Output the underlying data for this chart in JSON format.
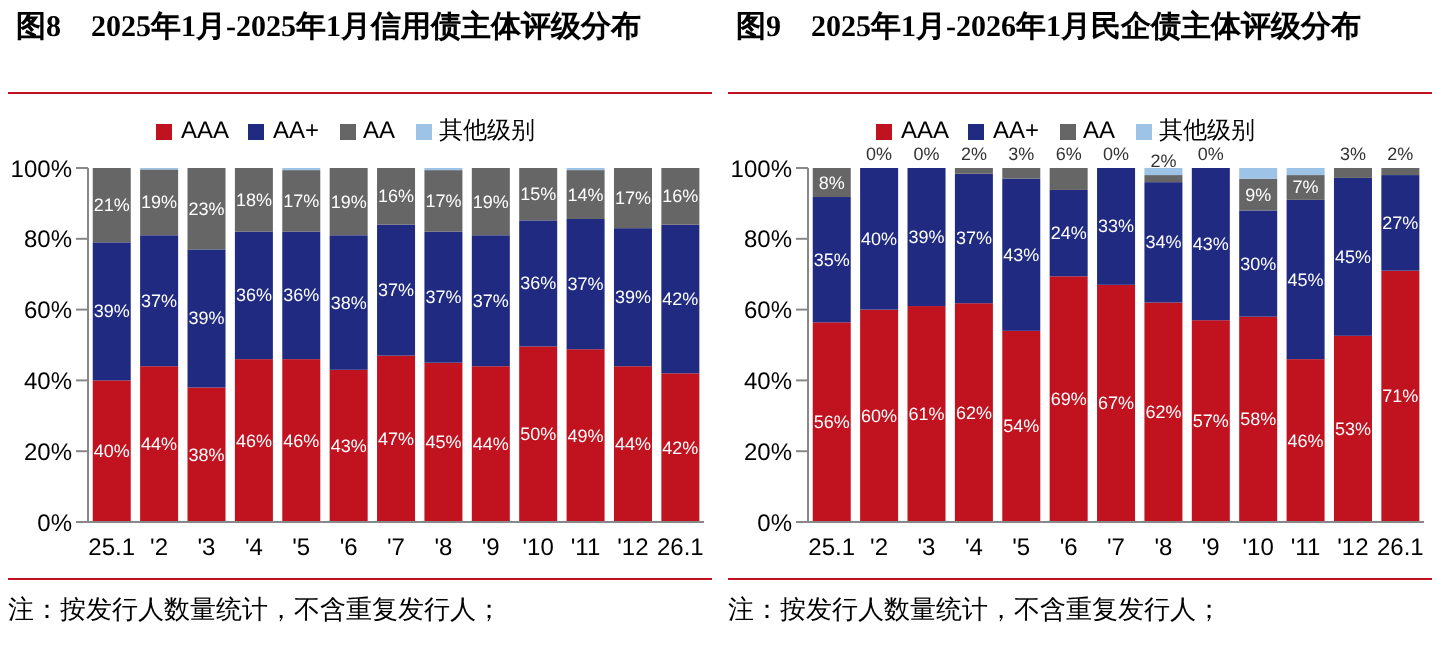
{
  "chart_data": [
    {
      "type": "bar",
      "stacked": true,
      "title": "图8　2025年1月-2025年1月信用债主体评级分布",
      "annotations": [
        "注：按发行人数量统计，不含重复发行人；"
      ],
      "legend": "top",
      "categories": [
        "25.1",
        "'2",
        "'3",
        "'4",
        "'5",
        "'6",
        "'7",
        "'8",
        "'9",
        "'10",
        "'11",
        "'12",
        "26.1"
      ],
      "ylim": [
        0,
        100
      ],
      "yticks": [
        {
          "value": 0,
          "label": "0%"
        },
        {
          "value": 20,
          "label": "20%"
        },
        {
          "value": 40,
          "label": "40%"
        },
        {
          "value": 60,
          "label": "60%"
        },
        {
          "value": 80,
          "label": "80%"
        },
        {
          "value": 100,
          "label": "100%"
        }
      ],
      "series": [
        {
          "name": "AAA",
          "color": "#c0121f",
          "values": [
            40,
            44,
            38,
            46,
            46,
            43,
            47,
            45,
            44,
            49.6,
            48.8,
            44,
            42
          ],
          "value_labels": [
            "40%",
            "44%",
            "38%",
            "46%",
            "46%",
            "43%",
            "47%",
            "45%",
            "44%",
            "50%",
            "49%",
            "44%",
            "42%"
          ]
        },
        {
          "name": "AA+",
          "color": "#1f2a80",
          "values": [
            39,
            37,
            39,
            36,
            36,
            38,
            37,
            37,
            37,
            35.6,
            36.8,
            39,
            42
          ],
          "value_labels": [
            "39%",
            "37%",
            "39%",
            "36%",
            "36%",
            "38%",
            "37%",
            "37%",
            "37%",
            "36%",
            "37%",
            "39%",
            "42%"
          ]
        },
        {
          "name": "AA",
          "color": "#666666",
          "values": [
            21,
            18.6,
            23,
            18,
            17.4,
            19,
            16,
            17.4,
            19,
            14.8,
            13.8,
            17,
            16
          ],
          "value_labels": [
            "21%",
            "19%",
            "23%",
            "18%",
            "17%",
            "19%",
            "16%",
            "17%",
            "19%",
            "15%",
            "14%",
            "17%",
            "16%"
          ]
        },
        {
          "name": "其他级别",
          "color": "#9dc3e6",
          "values": [
            0,
            0.4,
            0,
            0,
            0.6,
            0,
            0,
            0.6,
            0,
            0,
            0.6,
            0,
            0
          ],
          "value_labels": [
            null,
            null,
            null,
            null,
            null,
            null,
            null,
            null,
            null,
            null,
            null,
            null,
            null
          ]
        }
      ]
    },
    {
      "type": "bar",
      "stacked": true,
      "title": "图9　2025年1月-2026年1月民企债主体评级分布",
      "annotations": [
        "注：按发行人数量统计，不含重复发行人；"
      ],
      "legend": "top",
      "categories": [
        "25.1",
        "'2",
        "'3",
        "'4",
        "'5",
        "'6",
        "'7",
        "'8",
        "'9",
        "'10",
        "'11",
        "'12",
        "26.1"
      ],
      "ylim": [
        0,
        100
      ],
      "yticks": [
        {
          "value": 0,
          "label": "0%"
        },
        {
          "value": 20,
          "label": "20%"
        },
        {
          "value": 40,
          "label": "40%"
        },
        {
          "value": 60,
          "label": "60%"
        },
        {
          "value": 80,
          "label": "80%"
        },
        {
          "value": 100,
          "label": "100%"
        }
      ],
      "series": [
        {
          "name": "AAA",
          "color": "#c0121f",
          "values": [
            56.4,
            60,
            61,
            61.8,
            54,
            69.4,
            67,
            62,
            57,
            58,
            46,
            52.6,
            71
          ],
          "value_labels": [
            "56%",
            "60%",
            "61%",
            "62%",
            "54%",
            "69%",
            "67%",
            "62%",
            "57%",
            "58%",
            "46%",
            "53%",
            "71%"
          ]
        },
        {
          "name": "AA+",
          "color": "#1f2a80",
          "values": [
            35.4,
            40,
            39,
            36.6,
            43,
            24.4,
            33,
            34,
            43,
            30,
            45,
            44.6,
            27
          ],
          "value_labels": [
            "35%",
            "40%",
            "39%",
            "37%",
            "43%",
            "24%",
            "33%",
            "34%",
            "43%",
            "30%",
            "45%",
            "45%",
            "27%"
          ]
        },
        {
          "name": "AA",
          "color": "#666666",
          "values": [
            8.2,
            0,
            0,
            1.6,
            3,
            6.2,
            0,
            2,
            0,
            9,
            7,
            2.8,
            2
          ],
          "value_labels": [
            "8%",
            "0%",
            "0%",
            "2%",
            "3%",
            "6%",
            "0%",
            "2%",
            "0%",
            "9%",
            "7%",
            "3%",
            "2%"
          ]
        },
        {
          "name": "其他级别",
          "color": "#9dc3e6",
          "values": [
            0,
            0,
            0,
            0,
            0,
            0,
            0,
            2,
            0,
            3,
            2,
            0,
            0
          ],
          "value_labels": [
            null,
            null,
            null,
            null,
            null,
            null,
            null,
            null,
            null,
            null,
            null,
            null,
            null
          ]
        }
      ]
    }
  ]
}
